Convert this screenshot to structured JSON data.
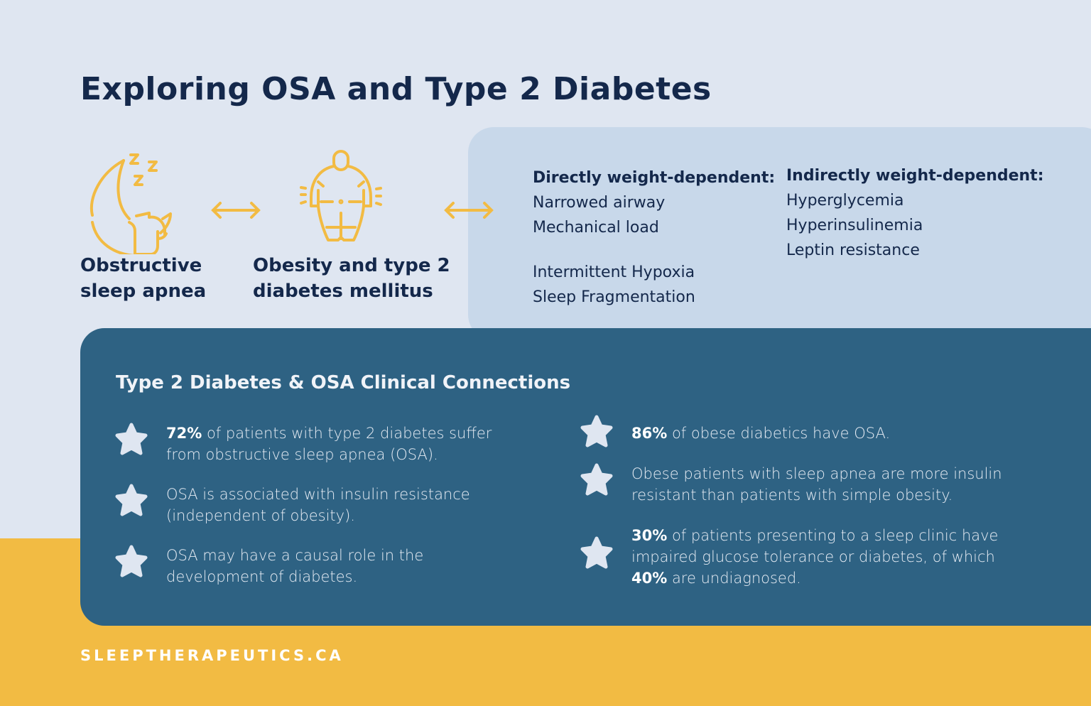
{
  "title": "Exploring OSA and Type 2 Diabetes",
  "colors": {
    "background": "#dfe6f1",
    "panel_light": "#c8d8ea",
    "panel_dark": "#2e6283",
    "accent_yellow": "#f2bb43",
    "navy": "#14284b"
  },
  "icons": [
    "sleeping-moon-icon",
    "double-arrow-icon",
    "obese-person-icon",
    "double-arrow-icon",
    "star-bullet-icon"
  ],
  "concepts": [
    {
      "line1": "Obstructive",
      "line2": "sleep apnea"
    },
    {
      "line1": "Obesity and type 2",
      "line2": "diabetes mellitus"
    }
  ],
  "direct": {
    "heading": "Directly weight-dependent:",
    "items": [
      "Narrowed airway",
      "Mechanical load"
    ],
    "extra": [
      "Intermittent Hypoxia",
      "Sleep Fragmentation"
    ]
  },
  "indirect": {
    "heading": "Indirectly weight-dependent:",
    "items": [
      "Hyperglycemia",
      "Hyperinsulinemia",
      "Leptin resistance"
    ]
  },
  "clinical": {
    "title": "Type 2 Diabetes & OSA Clinical Connections",
    "left": [
      {
        "bold": "72%",
        "text": " of patients with type 2 diabetes suffer from obstructive sleep apnea (OSA)."
      },
      {
        "bold": "",
        "text": "OSA is associated with insulin resistance (independent of obesity)."
      },
      {
        "bold": "",
        "text": "OSA may have a causal role in the development of diabetes."
      }
    ],
    "right": [
      {
        "bold": "86%",
        "text": " of obese diabetics have OSA."
      },
      {
        "bold": "",
        "text": "Obese patients with sleep apnea are more insulin resistant than patients with simple obesity."
      },
      {
        "bold": "30%",
        "text": " of patients presenting to a sleep clinic have impaired glucose tolerance or diabetes, of which ",
        "bold2": "40%",
        "text2": " are undiagnosed."
      }
    ]
  },
  "footer": "SLEEPTHERAPEUTICS.CA"
}
